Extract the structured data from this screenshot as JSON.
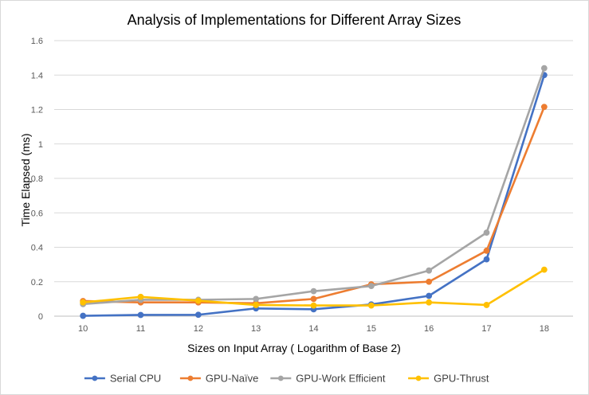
{
  "chart_data": {
    "type": "line",
    "title": "Analysis of Implementations for Different Array Sizes",
    "xlabel": "Sizes on Input Array ( Logarithm of Base 2)",
    "ylabel": "Time Elapsed (ms)",
    "categories": [
      "10",
      "11",
      "12",
      "13",
      "14",
      "15",
      "16",
      "17",
      "18"
    ],
    "ylim": [
      0,
      1.6
    ],
    "yticks": [
      "0",
      "0.2",
      "0.4",
      "0.6",
      "0.8",
      "1",
      "1.2",
      "1.4",
      "1.6"
    ],
    "grid": true,
    "legend_position": "bottom",
    "series": [
      {
        "name": "Serial CPU",
        "color": "#4472c4",
        "values": [
          0.002,
          0.007,
          0.008,
          0.045,
          0.04,
          0.068,
          0.118,
          0.33,
          1.4
        ]
      },
      {
        "name": "GPU-Naïve",
        "color": "#ed7d31",
        "values": [
          0.088,
          0.08,
          0.08,
          0.075,
          0.1,
          0.185,
          0.2,
          0.38,
          1.215
        ]
      },
      {
        "name": "GPU-Work Efficient",
        "color": "#a5a5a5",
        "values": [
          0.07,
          0.095,
          0.095,
          0.1,
          0.145,
          0.175,
          0.265,
          0.485,
          1.44
        ]
      },
      {
        "name": "GPU-Thrust",
        "color": "#ffc000",
        "values": [
          0.08,
          0.112,
          0.09,
          0.065,
          0.062,
          0.062,
          0.08,
          0.065,
          0.27
        ]
      }
    ]
  }
}
